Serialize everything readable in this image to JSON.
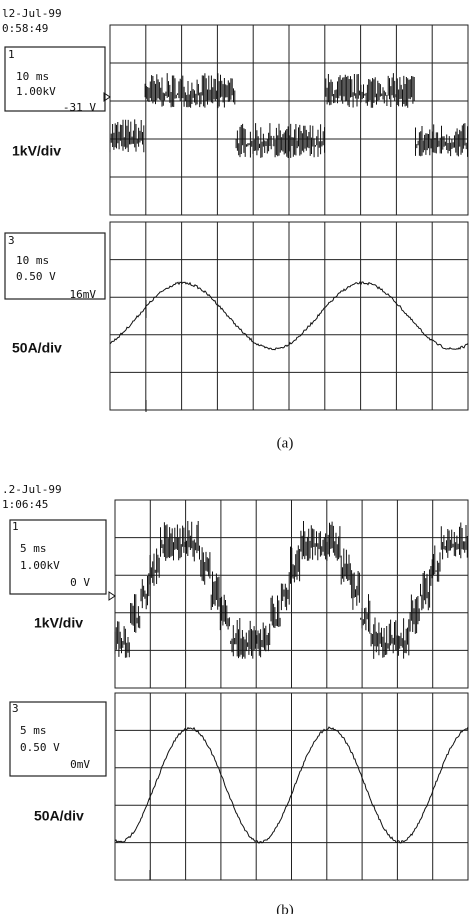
{
  "figure_a": {
    "date": "l2-Jul-99",
    "time": "0:58:49",
    "channel_1": {
      "number": "1",
      "timebase": "10 ms",
      "scale": "1.00kV",
      "offset": "-31 V",
      "label": "1kV/div"
    },
    "channel_3": {
      "number": "3",
      "timebase": "10 ms",
      "scale": "0.50 V",
      "offset": "16mV",
      "label": "50A/div"
    },
    "caption": "(a)"
  },
  "figure_b": {
    "date": ".2-Jul-99",
    "time": "1:06:45",
    "channel_1": {
      "number": "1",
      "timebase": "5 ms",
      "scale": "1.00kV",
      "offset": "0 V",
      "label": "1kV/div"
    },
    "channel_3": {
      "number": "3",
      "timebase": "5 ms",
      "scale": "0.50 V",
      "offset": "0mV",
      "label": "50A/div"
    },
    "caption": "(b)"
  }
}
